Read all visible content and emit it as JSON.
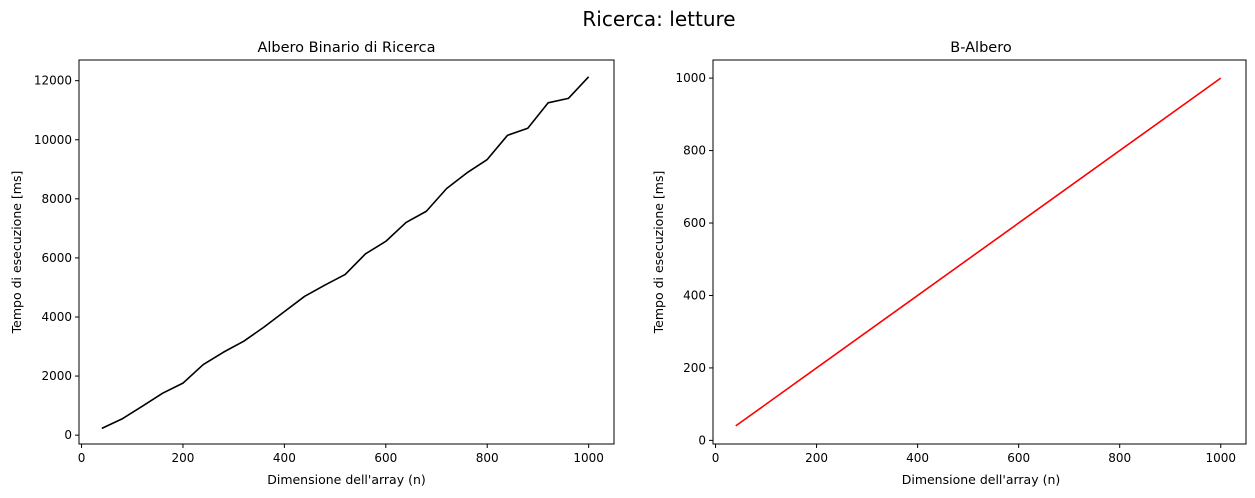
{
  "suptitle": "Ricerca: letture",
  "chart_data": [
    {
      "type": "line",
      "title": "Albero Binario di Ricerca",
      "xlabel": "Dimensione dell'array (n)",
      "ylabel": "Tempo di esecuzione [ms]",
      "xlim": [
        -5,
        1050
      ],
      "ylim": [
        -300,
        12700
      ],
      "xticks": [
        0,
        200,
        400,
        600,
        800,
        1000
      ],
      "yticks": [
        0,
        2000,
        4000,
        6000,
        8000,
        10000,
        12000
      ],
      "grid": false,
      "series": [
        {
          "color": "#000000",
          "x": [
            40,
            80,
            120,
            160,
            200,
            240,
            280,
            320,
            360,
            400,
            440,
            480,
            520,
            560,
            600,
            640,
            680,
            720,
            760,
            800,
            840,
            880,
            920,
            960,
            1000
          ],
          "y": [
            230,
            550,
            980,
            1420,
            1760,
            2390,
            2810,
            3180,
            3660,
            4180,
            4700,
            5080,
            5440,
            6140,
            6560,
            7200,
            7580,
            8350,
            8880,
            9330,
            10150,
            10390,
            11250,
            11400,
            12130
          ]
        }
      ]
    },
    {
      "type": "line",
      "title": "B-Albero",
      "xlabel": "Dimensione dell'array (n)",
      "ylabel": "Tempo di esecuzione [ms]",
      "xlim": [
        -5,
        1050
      ],
      "ylim": [
        -10,
        1050
      ],
      "xticks": [
        0,
        200,
        400,
        600,
        800,
        1000
      ],
      "yticks": [
        0,
        200,
        400,
        600,
        800,
        1000
      ],
      "grid": false,
      "series": [
        {
          "color": "#ff0000",
          "x": [
            40,
            1000
          ],
          "y": [
            40,
            1000
          ]
        }
      ]
    }
  ]
}
